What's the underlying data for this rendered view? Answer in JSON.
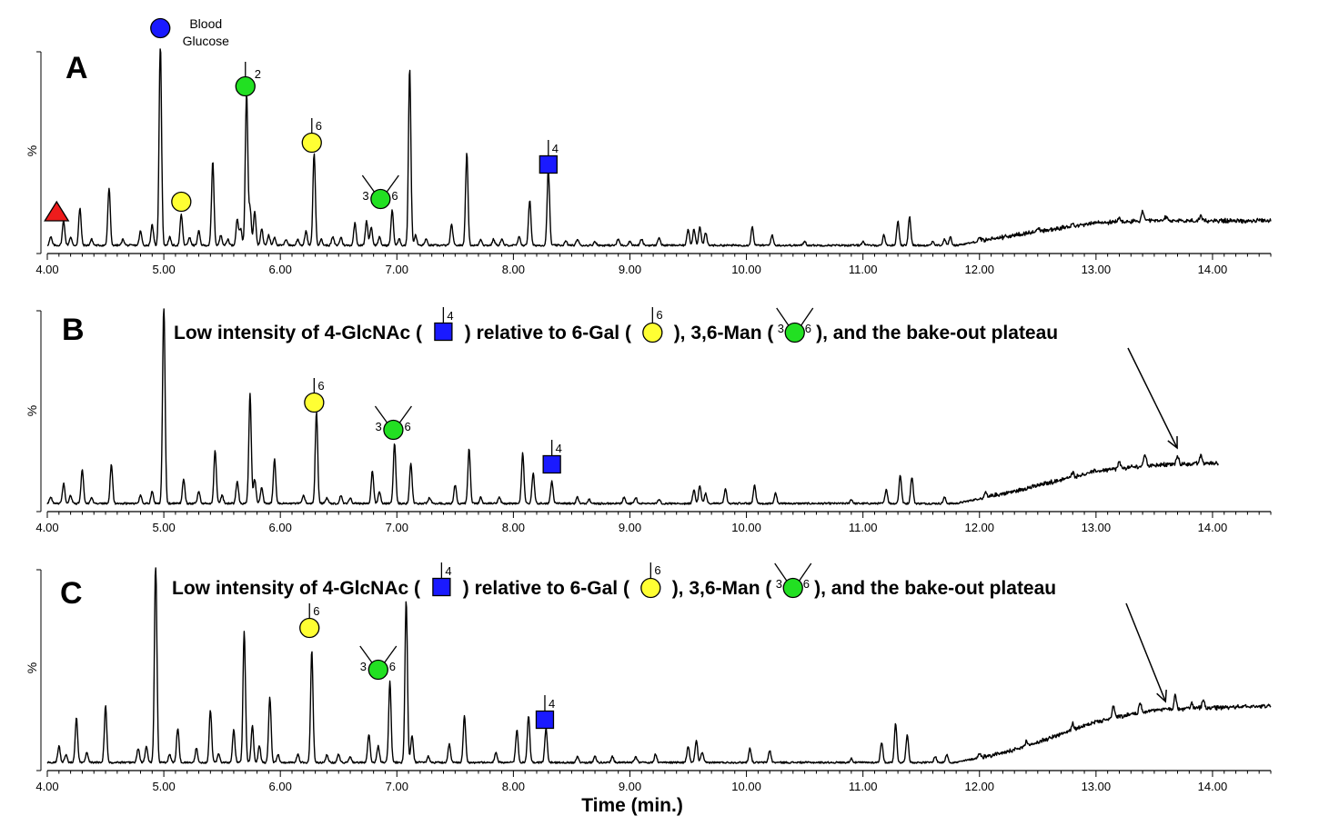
{
  "chart_data": {
    "type": "line",
    "title": "",
    "xlabel": "Time (min.)",
    "ylabel": "%",
    "xlim": [
      4.0,
      14.5
    ],
    "ylim": [
      0,
      100
    ],
    "x_ticks": [
      "4.00",
      "5.00",
      "6.00",
      "7.00",
      "8.00",
      "9.00",
      "10.00",
      "11.00",
      "12.00",
      "13.00",
      "14.00"
    ],
    "legend": {
      "label_line1": "Blood",
      "label_line2": "Glucose",
      "color": "#1a1aff"
    },
    "colors": {
      "line": "#000000",
      "glc": "#1a1aff",
      "gal": "#ffff33",
      "man": "#22e022",
      "glcnac": "#1a1aff",
      "fuc": "#ee1c1c"
    },
    "note": {
      "p1": "Low intensity of 4-GlcNAc (",
      "p2": ") relative to 6-Gal (",
      "p3": "), 3,6-Man (",
      "p4": "), and the bake-out plateau"
    },
    "symbol_labels": {
      "hex2": "2",
      "gal6": "6",
      "man3": "3",
      "man6": "6",
      "glcnac4": "4"
    },
    "panels": [
      {
        "letter": "A",
        "x_end": 14.5,
        "baseline": 2,
        "ramp": [
          [
            11.8,
            2
          ],
          [
            12.3,
            7
          ],
          [
            13.0,
            13
          ],
          [
            13.5,
            14
          ],
          [
            14.5,
            14
          ]
        ],
        "peaks": [
          [
            4.03,
            4
          ],
          [
            4.14,
            12
          ],
          [
            4.2,
            4
          ],
          [
            4.28,
            18
          ],
          [
            4.38,
            3
          ],
          [
            4.53,
            28
          ],
          [
            4.65,
            3
          ],
          [
            4.8,
            7
          ],
          [
            4.9,
            10
          ],
          [
            4.97,
            100
          ],
          [
            5.05,
            4
          ],
          [
            5.15,
            15
          ],
          [
            5.22,
            4
          ],
          [
            5.3,
            7
          ],
          [
            5.42,
            41
          ],
          [
            5.49,
            5
          ],
          [
            5.55,
            3
          ],
          [
            5.63,
            13
          ],
          [
            5.66,
            8
          ],
          [
            5.71,
            75
          ],
          [
            5.74,
            18
          ],
          [
            5.78,
            17
          ],
          [
            5.84,
            8
          ],
          [
            5.9,
            5
          ],
          [
            5.95,
            4
          ],
          [
            6.05,
            3
          ],
          [
            6.15,
            3
          ],
          [
            6.22,
            7
          ],
          [
            6.29,
            45
          ],
          [
            6.35,
            3
          ],
          [
            6.45,
            4
          ],
          [
            6.52,
            4
          ],
          [
            6.64,
            11
          ],
          [
            6.74,
            12
          ],
          [
            6.78,
            9
          ],
          [
            6.85,
            4
          ],
          [
            6.96,
            17
          ],
          [
            7.02,
            3
          ],
          [
            7.11,
            87
          ],
          [
            7.16,
            5
          ],
          [
            7.25,
            3
          ],
          [
            7.47,
            10
          ],
          [
            7.6,
            45
          ],
          [
            7.72,
            3
          ],
          [
            7.83,
            3
          ],
          [
            7.9,
            3
          ],
          [
            8.05,
            4
          ],
          [
            8.14,
            22
          ],
          [
            8.3,
            37
          ],
          [
            8.45,
            2
          ],
          [
            8.55,
            3
          ],
          [
            8.7,
            2
          ],
          [
            8.9,
            3
          ],
          [
            9.0,
            2
          ],
          [
            9.1,
            3
          ],
          [
            9.25,
            4
          ],
          [
            9.5,
            8
          ],
          [
            9.55,
            8
          ],
          [
            9.6,
            9
          ],
          [
            9.65,
            6
          ],
          [
            10.05,
            9
          ],
          [
            10.22,
            5
          ],
          [
            10.5,
            2
          ],
          [
            11.0,
            2
          ],
          [
            11.18,
            5
          ],
          [
            11.3,
            12
          ],
          [
            11.4,
            14
          ],
          [
            11.6,
            2
          ],
          [
            11.7,
            3
          ],
          [
            11.75,
            4
          ],
          [
            12.0,
            2
          ],
          [
            12.5,
            2
          ],
          [
            12.8,
            2
          ],
          [
            13.2,
            2
          ],
          [
            13.4,
            5
          ],
          [
            13.6,
            2
          ],
          [
            13.9,
            2
          ]
        ],
        "symbols": [
          {
            "kind": "triangle",
            "x": 4.08,
            "lift": 0
          },
          {
            "kind": "glc",
            "x": 4.97,
            "lift": 0
          },
          {
            "kind": "hex2",
            "x": 5.7,
            "lift": 0
          },
          {
            "kind": "gal",
            "x": 5.15,
            "lift": 0
          },
          {
            "kind": "gal6",
            "x": 6.27,
            "lift": 0
          },
          {
            "kind": "man36",
            "x": 6.86,
            "lift": 0
          },
          {
            "kind": "glcnac4",
            "x": 8.3,
            "lift": 0
          }
        ],
        "arrow_x": null
      },
      {
        "letter": "B",
        "x_end": 14.05,
        "baseline": 2,
        "ramp": [
          [
            11.8,
            2
          ],
          [
            12.3,
            8
          ],
          [
            13.0,
            18
          ],
          [
            13.5,
            21
          ],
          [
            14.05,
            22
          ]
        ],
        "peaks": [
          [
            4.03,
            3
          ],
          [
            4.14,
            10
          ],
          [
            4.2,
            4
          ],
          [
            4.3,
            17
          ],
          [
            4.38,
            3
          ],
          [
            4.55,
            19
          ],
          [
            4.8,
            4
          ],
          [
            4.9,
            6
          ],
          [
            5.0,
            100
          ],
          [
            5.17,
            12
          ],
          [
            5.3,
            6
          ],
          [
            5.44,
            26
          ],
          [
            5.5,
            4
          ],
          [
            5.63,
            11
          ],
          [
            5.74,
            54
          ],
          [
            5.78,
            12
          ],
          [
            5.84,
            8
          ],
          [
            5.95,
            22
          ],
          [
            6.2,
            4
          ],
          [
            6.31,
            45
          ],
          [
            6.4,
            3
          ],
          [
            6.52,
            4
          ],
          [
            6.6,
            3
          ],
          [
            6.79,
            16
          ],
          [
            6.85,
            6
          ],
          [
            6.98,
            30
          ],
          [
            7.12,
            20
          ],
          [
            7.28,
            3
          ],
          [
            7.5,
            9
          ],
          [
            7.62,
            27
          ],
          [
            7.72,
            3
          ],
          [
            7.88,
            3
          ],
          [
            8.08,
            25
          ],
          [
            8.17,
            15
          ],
          [
            8.33,
            11
          ],
          [
            8.55,
            3
          ],
          [
            8.65,
            2
          ],
          [
            8.95,
            3
          ],
          [
            9.05,
            3
          ],
          [
            9.25,
            2
          ],
          [
            9.55,
            7
          ],
          [
            9.6,
            9
          ],
          [
            9.65,
            5
          ],
          [
            9.82,
            7
          ],
          [
            10.07,
            9
          ],
          [
            10.25,
            5
          ],
          [
            10.9,
            2
          ],
          [
            11.2,
            7
          ],
          [
            11.32,
            14
          ],
          [
            11.42,
            13
          ],
          [
            11.7,
            3
          ],
          [
            12.05,
            2
          ],
          [
            12.8,
            2
          ],
          [
            13.2,
            3
          ],
          [
            13.42,
            6
          ],
          [
            13.7,
            4
          ],
          [
            13.9,
            4
          ]
        ],
        "symbols": [
          {
            "kind": "gal6",
            "x": 6.29,
            "lift": 0
          },
          {
            "kind": "man36",
            "x": 6.97,
            "lift": 0
          },
          {
            "kind": "glcnac4",
            "x": 8.33,
            "lift": 0
          }
        ],
        "arrow_x": 13.72
      },
      {
        "letter": "C",
        "x_end": 14.5,
        "baseline": 2,
        "ramp": [
          [
            11.8,
            2
          ],
          [
            12.3,
            8
          ],
          [
            13.0,
            22
          ],
          [
            13.5,
            28
          ],
          [
            14.5,
            30
          ]
        ],
        "peaks": [
          [
            4.1,
            8
          ],
          [
            4.16,
            4
          ],
          [
            4.25,
            22
          ],
          [
            4.34,
            5
          ],
          [
            4.5,
            28
          ],
          [
            4.78,
            7
          ],
          [
            4.85,
            8
          ],
          [
            4.93,
            100
          ],
          [
            5.05,
            4
          ],
          [
            5.12,
            17
          ],
          [
            5.28,
            7
          ],
          [
            5.4,
            26
          ],
          [
            5.47,
            4
          ],
          [
            5.6,
            16
          ],
          [
            5.69,
            65
          ],
          [
            5.76,
            18
          ],
          [
            5.82,
            8
          ],
          [
            5.91,
            32
          ],
          [
            5.98,
            4
          ],
          [
            6.15,
            4
          ],
          [
            6.27,
            55
          ],
          [
            6.4,
            4
          ],
          [
            6.5,
            4
          ],
          [
            6.6,
            3
          ],
          [
            6.76,
            14
          ],
          [
            6.84,
            8
          ],
          [
            6.94,
            40
          ],
          [
            7.08,
            80
          ],
          [
            7.13,
            13
          ],
          [
            7.27,
            3
          ],
          [
            7.45,
            9
          ],
          [
            7.58,
            23
          ],
          [
            7.85,
            5
          ],
          [
            8.03,
            16
          ],
          [
            8.13,
            23
          ],
          [
            8.28,
            17
          ],
          [
            8.55,
            3
          ],
          [
            8.7,
            3
          ],
          [
            8.85,
            3
          ],
          [
            9.05,
            3
          ],
          [
            9.22,
            4
          ],
          [
            9.5,
            8
          ],
          [
            9.57,
            11
          ],
          [
            9.62,
            5
          ],
          [
            10.03,
            7
          ],
          [
            10.2,
            6
          ],
          [
            10.9,
            2
          ],
          [
            11.16,
            10
          ],
          [
            11.28,
            19
          ],
          [
            11.38,
            14
          ],
          [
            11.62,
            3
          ],
          [
            11.72,
            4
          ],
          [
            12.0,
            2
          ],
          [
            12.4,
            2
          ],
          [
            12.8,
            3
          ],
          [
            13.15,
            6
          ],
          [
            13.38,
            5
          ],
          [
            13.68,
            7
          ],
          [
            13.82,
            3
          ],
          [
            13.92,
            4
          ]
        ],
        "symbols": [
          {
            "kind": "gal6",
            "x": 6.25,
            "lift": 0
          },
          {
            "kind": "man36",
            "x": 6.84,
            "lift": 0
          },
          {
            "kind": "glcnac4",
            "x": 8.27,
            "lift": 0
          }
        ],
        "arrow_x": 13.62
      }
    ]
  }
}
